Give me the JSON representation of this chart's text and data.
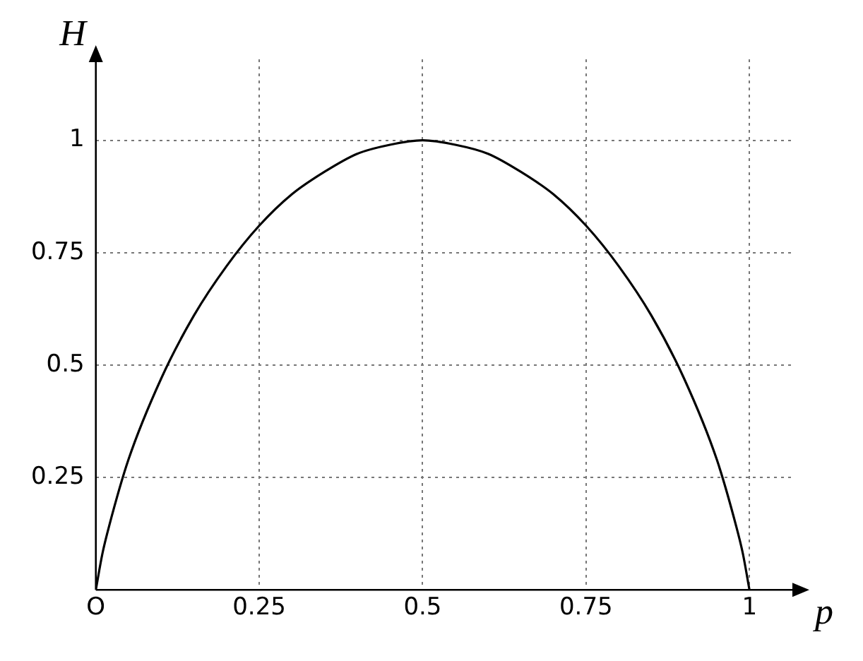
{
  "chart_data": {
    "type": "line",
    "xlabel": "p",
    "ylabel": "H",
    "x": [
      0,
      0.01,
      0.02,
      0.05,
      0.1,
      0.15,
      0.2,
      0.25,
      0.3,
      0.35,
      0.4,
      0.45,
      0.5,
      0.55,
      0.6,
      0.65,
      0.7,
      0.75,
      0.8,
      0.85,
      0.9,
      0.95,
      0.98,
      0.99,
      1
    ],
    "series": [
      {
        "color": "#000000",
        "values": [
          0,
          0.08,
          0.14,
          0.29,
          0.47,
          0.61,
          0.72,
          0.81,
          0.88,
          0.93,
          0.97,
          0.99,
          1,
          0.99,
          0.97,
          0.93,
          0.88,
          0.81,
          0.72,
          0.61,
          0.47,
          0.29,
          0.14,
          0.08,
          0
        ]
      }
    ],
    "xlim": [
      0,
      1.07
    ],
    "ylim": [
      0,
      1.18
    ],
    "xticks": [
      {
        "value": 0,
        "label": "O"
      },
      0.25,
      0.5,
      0.75,
      1
    ],
    "yticks": [
      0.25,
      0.5,
      0.75,
      1
    ],
    "grid": true,
    "marker": "none",
    "line_style": "solid",
    "legend": false
  }
}
